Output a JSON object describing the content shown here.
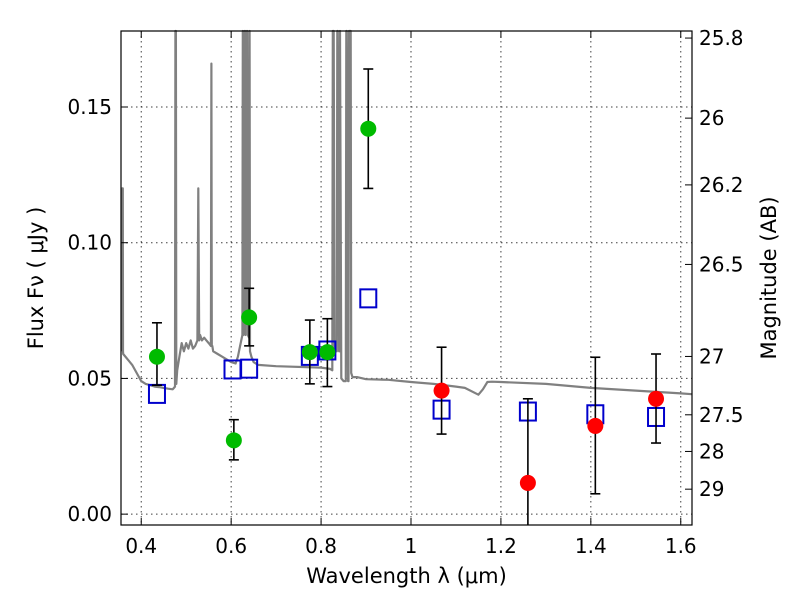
{
  "chart_data": {
    "type": "scatter",
    "xlabel": "Wavelength  λ (μm)",
    "ylabel": "Flux  Fν  ( μJy )",
    "ylabel_right": "Magnitude (AB)",
    "xlim": [
      0.355,
      1.625
    ],
    "ylim": [
      -0.004,
      0.178
    ],
    "x_ticks": [
      0.4,
      0.6,
      0.8,
      1.0,
      1.2,
      1.4,
      1.6
    ],
    "x_tick_labels": [
      "0.4",
      "0.6",
      "0.8",
      "1",
      "1.2",
      "1.4",
      "1.6"
    ],
    "y_ticks": [
      0.0,
      0.05,
      0.1,
      0.15
    ],
    "y_tick_labels": [
      "0.00",
      "0.05",
      "0.10",
      "0.15"
    ],
    "right_ticks": [
      {
        "label": "25.8",
        "flux": 0.1754
      },
      {
        "label": "26",
        "flux": 0.1459
      },
      {
        "label": "26.2",
        "flux": 0.1213
      },
      {
        "label": "26.5",
        "flux": 0.092
      },
      {
        "label": "27",
        "flux": 0.0581
      },
      {
        "label": "27.5",
        "flux": 0.0366
      },
      {
        "label": "28",
        "flux": 0.0231
      },
      {
        "label": "29",
        "flux": 0.0092
      }
    ],
    "grid": true,
    "colors": {
      "model": "#808080",
      "green": "#00bb00",
      "red": "#ff0000",
      "box": "#0000cc",
      "errorbar": "#000000"
    },
    "model_sed": {
      "name": "model spectrum",
      "x": [
        0.357,
        0.358,
        0.359,
        0.3595,
        0.36,
        0.37,
        0.38,
        0.39,
        0.4,
        0.41,
        0.42,
        0.43,
        0.44,
        0.45,
        0.46,
        0.47,
        0.475,
        0.476,
        0.477,
        0.478,
        0.48,
        0.485,
        0.49,
        0.495,
        0.5,
        0.505,
        0.51,
        0.515,
        0.52,
        0.525,
        0.527,
        0.529,
        0.531,
        0.535,
        0.54,
        0.545,
        0.55,
        0.555,
        0.556,
        0.557,
        0.558,
        0.56,
        0.57,
        0.58,
        0.59,
        0.6,
        0.61,
        0.615,
        0.62,
        0.625,
        0.626,
        0.627,
        0.63,
        0.631,
        0.632,
        0.635,
        0.636,
        0.637,
        0.64,
        0.641,
        0.642,
        0.645,
        0.65,
        0.66,
        0.7,
        0.8,
        0.82,
        0.825,
        0.826,
        0.828,
        0.83,
        0.835,
        0.836,
        0.837,
        0.84,
        0.841,
        0.842,
        0.845,
        0.85,
        0.855,
        0.856,
        0.857,
        0.86,
        0.861,
        0.862,
        0.865,
        0.866,
        0.867,
        0.87,
        0.88,
        0.9,
        0.95,
        1.0,
        1.05,
        1.1,
        1.12,
        1.15,
        1.16,
        1.17,
        1.18,
        1.2,
        1.3,
        1.4,
        1.5,
        1.6,
        1.625
      ],
      "y": [
        0.06,
        0.12,
        0.12,
        0.06,
        0.059,
        0.057,
        0.055,
        0.052,
        0.049,
        0.048,
        0.0475,
        0.047,
        0.0468,
        0.0465,
        0.0462,
        0.046,
        0.047,
        0.18,
        0.18,
        0.048,
        0.053,
        0.058,
        0.063,
        0.06,
        0.063,
        0.061,
        0.064,
        0.061,
        0.062,
        0.064,
        0.12,
        0.064,
        0.066,
        0.064,
        0.065,
        0.064,
        0.063,
        0.062,
        0.166,
        0.062,
        0.062,
        0.06,
        0.059,
        0.058,
        0.057,
        0.056,
        0.0555,
        0.058,
        0.062,
        0.066,
        0.18,
        0.066,
        0.18,
        0.18,
        0.066,
        0.18,
        0.18,
        0.066,
        0.065,
        0.18,
        0.06,
        0.058,
        0.056,
        0.055,
        0.0545,
        0.054,
        0.0535,
        0.053,
        0.18,
        0.18,
        0.06,
        0.06,
        0.18,
        0.18,
        0.06,
        0.06,
        0.18,
        0.05,
        0.049,
        0.049,
        0.18,
        0.18,
        0.049,
        0.049,
        0.18,
        0.18,
        0.18,
        0.052,
        0.0505,
        0.0505,
        0.0497,
        0.0495,
        0.0487,
        0.048,
        0.047,
        0.0465,
        0.044,
        0.046,
        0.0487,
        0.0488,
        0.0487,
        0.048,
        0.0465,
        0.0455,
        0.0445,
        0.0442
      ]
    },
    "series": [
      {
        "name": "green detections",
        "marker": "circle",
        "points": [
          {
            "x": 0.435,
            "y": 0.058,
            "lo": 0.0475,
            "hi": 0.0705
          },
          {
            "x": 0.606,
            "y": 0.0272,
            "lo": 0.02,
            "hi": 0.0348
          },
          {
            "x": 0.64,
            "y": 0.0725,
            "lo": 0.062,
            "hi": 0.0832
          },
          {
            "x": 0.775,
            "y": 0.0597,
            "lo": 0.048,
            "hi": 0.0715
          },
          {
            "x": 0.814,
            "y": 0.0597,
            "lo": 0.047,
            "hi": 0.072
          },
          {
            "x": 0.905,
            "y": 0.142,
            "lo": 0.12,
            "hi": 0.164
          }
        ]
      },
      {
        "name": "red detections",
        "marker": "circle",
        "points": [
          {
            "x": 1.068,
            "y": 0.0455,
            "lo": 0.0295,
            "hi": 0.0615
          },
          {
            "x": 1.26,
            "y": 0.0115,
            "lo": -0.006,
            "hi": 0.0425
          },
          {
            "x": 1.41,
            "y": 0.0325,
            "lo": 0.0075,
            "hi": 0.0578
          },
          {
            "x": 1.545,
            "y": 0.0425,
            "lo": 0.0262,
            "hi": 0.059
          }
        ]
      },
      {
        "name": "model band fluxes",
        "marker": "square",
        "points": [
          {
            "x": 0.435,
            "y": 0.0443
          },
          {
            "x": 0.603,
            "y": 0.0533
          },
          {
            "x": 0.64,
            "y": 0.0536
          },
          {
            "x": 0.775,
            "y": 0.0583
          },
          {
            "x": 0.814,
            "y": 0.0603
          },
          {
            "x": 0.905,
            "y": 0.0795
          },
          {
            "x": 1.068,
            "y": 0.0385
          },
          {
            "x": 1.26,
            "y": 0.0378
          },
          {
            "x": 1.41,
            "y": 0.0368
          },
          {
            "x": 1.545,
            "y": 0.0358
          }
        ]
      }
    ]
  }
}
